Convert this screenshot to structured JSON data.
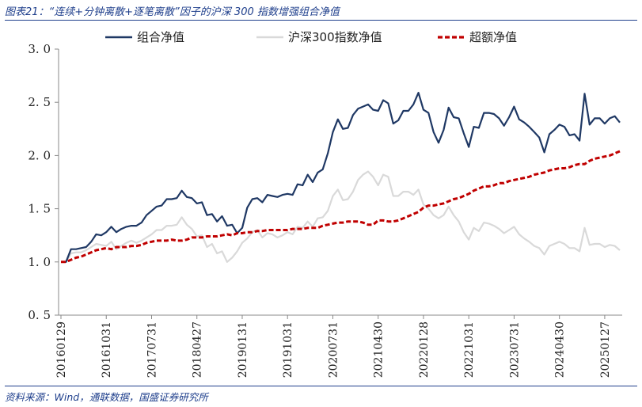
{
  "figure": {
    "title": "图表21：“连续+分钟离散+逐笔离散”因子的沪深 300 指数增强组合净值",
    "source": "资料来源：Wind，通联数据，国盛证券研究所"
  },
  "colors": {
    "portfolio": "#1f3864",
    "benchmark": "#d9d9d9",
    "excess": "#c00000",
    "frame": "#1f3f8c"
  },
  "chart_data": {
    "type": "line",
    "title": "",
    "xlabel": "",
    "ylabel": "",
    "ylim": [
      0.5,
      3.0
    ],
    "yticks": [
      "3. 0",
      "2. 5",
      "2. 0",
      "1. 5",
      "1. 0",
      "0. 5"
    ],
    "legend_position": "top",
    "x_tick_labels": [
      "20160129",
      "20161031",
      "20170731",
      "20180427",
      "20190131",
      "20191031",
      "20200731",
      "20210430",
      "20220128",
      "20221031",
      "20230731",
      "20240430",
      "20250127"
    ],
    "series": [
      {
        "name": "组合净值",
        "key": "portfolio",
        "values": [
          1.0,
          1.0,
          1.12,
          1.12,
          1.13,
          1.14,
          1.19,
          1.26,
          1.25,
          1.28,
          1.33,
          1.28,
          1.31,
          1.33,
          1.34,
          1.34,
          1.37,
          1.44,
          1.48,
          1.52,
          1.53,
          1.59,
          1.59,
          1.6,
          1.67,
          1.61,
          1.6,
          1.55,
          1.56,
          1.44,
          1.45,
          1.38,
          1.43,
          1.34,
          1.35,
          1.27,
          1.32,
          1.51,
          1.59,
          1.6,
          1.56,
          1.63,
          1.62,
          1.61,
          1.63,
          1.64,
          1.63,
          1.73,
          1.72,
          1.82,
          1.75,
          1.84,
          1.87,
          2.02,
          2.22,
          2.34,
          2.25,
          2.26,
          2.38,
          2.44,
          2.46,
          2.48,
          2.43,
          2.42,
          2.52,
          2.49,
          2.3,
          2.33,
          2.42,
          2.42,
          2.48,
          2.59,
          2.43,
          2.4,
          2.22,
          2.12,
          2.24,
          2.45,
          2.36,
          2.35,
          2.21,
          2.08,
          2.27,
          2.26,
          2.4,
          2.4,
          2.39,
          2.35,
          2.28,
          2.36,
          2.46,
          2.34,
          2.31,
          2.27,
          2.22,
          2.17,
          2.03,
          2.2,
          2.24,
          2.29,
          2.27,
          2.19,
          2.2,
          2.14,
          2.58,
          2.29,
          2.35,
          2.35,
          2.3,
          2.35,
          2.37,
          2.31
        ]
      },
      {
        "name": "沪深300指数净值",
        "key": "benchmark",
        "values": [
          1.0,
          1.0,
          1.08,
          1.09,
          1.09,
          1.11,
          1.14,
          1.17,
          1.16,
          1.15,
          1.19,
          1.12,
          1.15,
          1.18,
          1.2,
          1.18,
          1.2,
          1.23,
          1.26,
          1.3,
          1.3,
          1.34,
          1.34,
          1.35,
          1.42,
          1.35,
          1.31,
          1.24,
          1.25,
          1.14,
          1.17,
          1.08,
          1.1,
          1.0,
          1.04,
          1.1,
          1.18,
          1.22,
          1.28,
          1.3,
          1.23,
          1.27,
          1.26,
          1.23,
          1.25,
          1.28,
          1.26,
          1.33,
          1.32,
          1.38,
          1.33,
          1.41,
          1.42,
          1.48,
          1.62,
          1.68,
          1.58,
          1.59,
          1.66,
          1.77,
          1.82,
          1.85,
          1.8,
          1.72,
          1.82,
          1.8,
          1.62,
          1.62,
          1.66,
          1.66,
          1.63,
          1.68,
          1.54,
          1.5,
          1.44,
          1.41,
          1.44,
          1.52,
          1.44,
          1.38,
          1.28,
          1.21,
          1.32,
          1.29,
          1.37,
          1.36,
          1.34,
          1.31,
          1.27,
          1.3,
          1.33,
          1.26,
          1.22,
          1.19,
          1.15,
          1.13,
          1.07,
          1.15,
          1.17,
          1.19,
          1.17,
          1.13,
          1.13,
          1.1,
          1.32,
          1.16,
          1.17,
          1.17,
          1.14,
          1.16,
          1.15,
          1.11
        ]
      },
      {
        "name": "超额净值",
        "key": "excess",
        "values": [
          1.0,
          1.0,
          1.02,
          1.04,
          1.05,
          1.07,
          1.09,
          1.11,
          1.12,
          1.13,
          1.12,
          1.14,
          1.14,
          1.14,
          1.15,
          1.15,
          1.16,
          1.18,
          1.19,
          1.2,
          1.2,
          1.2,
          1.21,
          1.2,
          1.2,
          1.21,
          1.23,
          1.23,
          1.23,
          1.24,
          1.24,
          1.24,
          1.25,
          1.26,
          1.25,
          1.27,
          1.27,
          1.28,
          1.28,
          1.29,
          1.29,
          1.3,
          1.3,
          1.3,
          1.3,
          1.3,
          1.31,
          1.31,
          1.31,
          1.32,
          1.32,
          1.32,
          1.34,
          1.35,
          1.36,
          1.37,
          1.37,
          1.38,
          1.38,
          1.38,
          1.37,
          1.35,
          1.35,
          1.39,
          1.39,
          1.38,
          1.38,
          1.39,
          1.41,
          1.43,
          1.45,
          1.47,
          1.51,
          1.53,
          1.53,
          1.54,
          1.55,
          1.57,
          1.59,
          1.6,
          1.62,
          1.64,
          1.67,
          1.69,
          1.71,
          1.71,
          1.72,
          1.74,
          1.74,
          1.76,
          1.77,
          1.78,
          1.79,
          1.8,
          1.82,
          1.83,
          1.84,
          1.86,
          1.87,
          1.88,
          1.88,
          1.89,
          1.91,
          1.92,
          1.92,
          1.95,
          1.97,
          1.98,
          1.99,
          2.0,
          2.02,
          2.04
        ]
      }
    ]
  }
}
